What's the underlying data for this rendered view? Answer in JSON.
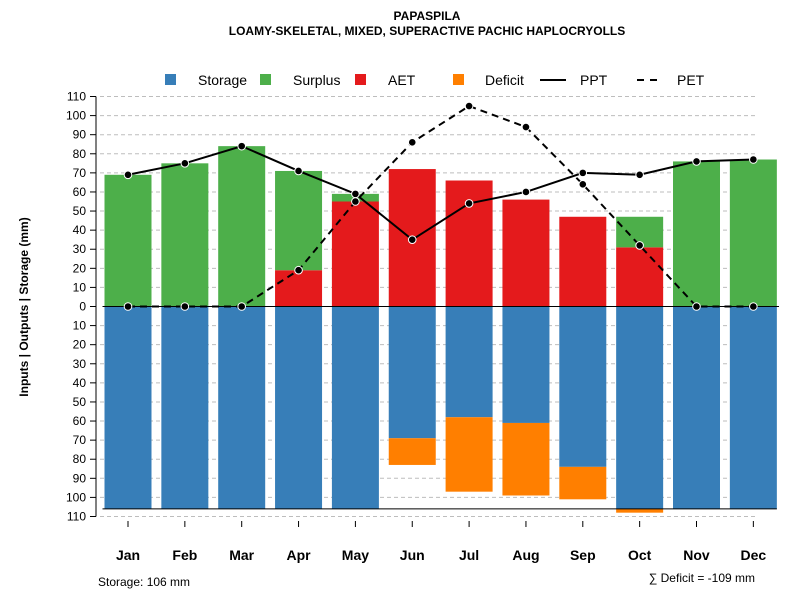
{
  "chart_data": {
    "type": "bar",
    "title": "PAPASPILA",
    "subtitle": "LOAMY-SKELETAL, MIXED, SUPERACTIVE PACHIC HAPLOCRYOLLS",
    "ylabel": "Inputs | Outputs | Storage     (mm)",
    "xlabel": "",
    "ylim": [
      -110,
      110
    ],
    "yticks": [
      110,
      100,
      90,
      80,
      70,
      60,
      50,
      40,
      30,
      20,
      10,
      0,
      10,
      20,
      30,
      40,
      50,
      60,
      70,
      80,
      90,
      100,
      110
    ],
    "categories": [
      "Jan",
      "Feb",
      "Mar",
      "Apr",
      "May",
      "Jun",
      "Jul",
      "Aug",
      "Sep",
      "Oct",
      "Nov",
      "Dec"
    ],
    "series": [
      {
        "name": "Storage",
        "color": "#377EB8",
        "values": [
          106,
          106,
          106,
          106,
          106,
          69,
          58,
          61,
          84,
          106,
          106,
          106
        ]
      },
      {
        "name": "Surplus",
        "color": "#4DAF4A",
        "values": [
          69,
          75,
          84,
          52,
          4,
          0,
          0,
          0,
          0,
          16,
          76,
          77
        ]
      },
      {
        "name": "AET",
        "color": "#E41A1C",
        "values": [
          0,
          0,
          0,
          19,
          55,
          72,
          66,
          56,
          47,
          31,
          0,
          0
        ]
      },
      {
        "name": "Deficit",
        "color": "#FF7F00",
        "values": [
          0,
          0,
          0,
          0,
          0,
          14,
          39,
          38,
          17,
          2,
          0,
          0
        ]
      },
      {
        "name": "PPT",
        "color": "#000000",
        "style": "solid",
        "values": [
          69,
          75,
          84,
          71,
          59,
          35,
          54,
          60,
          70,
          69,
          76,
          77
        ]
      },
      {
        "name": "PET",
        "color": "#000000",
        "style": "dashed",
        "values": [
          0,
          0,
          0,
          19,
          55,
          86,
          105,
          94,
          64,
          32,
          0,
          0
        ]
      }
    ],
    "legend": [
      "Storage",
      "Surplus",
      "AET",
      "Deficit",
      "PPT",
      "PET"
    ],
    "legend_position": "top-center",
    "grid": true,
    "storage_note": "Storage: 106 mm",
    "deficit_note": "∑ Deficit = -109 mm"
  }
}
